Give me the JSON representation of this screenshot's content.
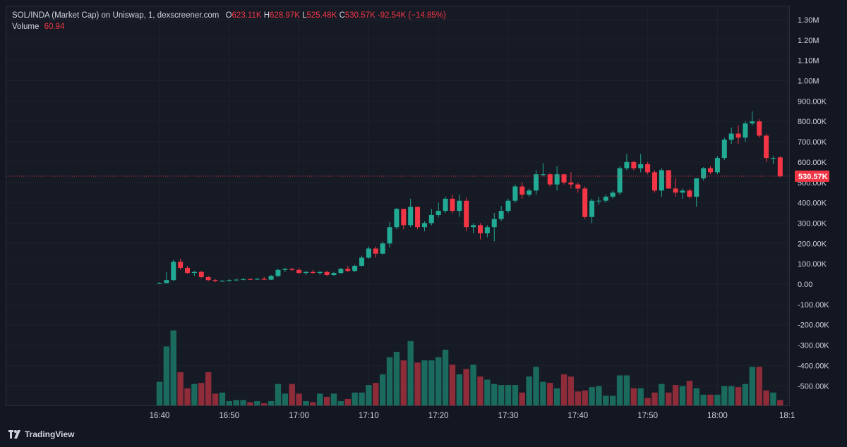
{
  "header": {
    "title": "SOL/INDA (Market Cap) on Uniswap, 1, dexscreener.com",
    "o_label": "O",
    "o_value": "623.11K",
    "h_label": "H",
    "h_value": "628.97K",
    "l_label": "L",
    "l_value": "525.48K",
    "c_label": "C",
    "c_value": "530.57K",
    "change": "-92.54K (−14.85%)",
    "volume_label": "Volume",
    "volume_value": "60.94"
  },
  "footer": {
    "brand": "TradingView",
    "logo_icon": "tradingview-logo-icon"
  },
  "colors": {
    "up": "#22ab94",
    "down": "#f23645",
    "up_vol": "#1a6b5e",
    "down_vol": "#8e2c3a"
  },
  "chart_data": {
    "type": "candlestick",
    "price_axis_ticks": [
      "1.30M",
      "1.20M",
      "1.10M",
      "1.00M",
      "900.00K",
      "800.00K",
      "700.00K",
      "600.00K",
      "500.00K",
      "400.00K",
      "300.00K",
      "200.00K",
      "100.00K",
      "0.00",
      "-100.00K",
      "-200.00K",
      "-300.00K",
      "-400.00K",
      "-500.00K"
    ],
    "price_axis_values": [
      1300000,
      1200000,
      1100000,
      1000000,
      900000,
      800000,
      700000,
      600000,
      500000,
      400000,
      300000,
      200000,
      100000,
      0,
      -100000,
      -200000,
      -300000,
      -400000,
      -500000
    ],
    "time_ticks": [
      "16:40",
      "16:50",
      "17:00",
      "17:10",
      "17:20",
      "17:30",
      "17:40",
      "17:50",
      "18:00",
      "18:1"
    ],
    "time_tick_minutes": [
      0,
      10,
      20,
      30,
      40,
      50,
      60,
      70,
      80,
      90
    ],
    "current_price_label": "530.57K",
    "current_price": 530570,
    "candles": [
      {
        "t": 0,
        "o": 3000,
        "h": 10000,
        "l": 0,
        "c": 5000
      },
      {
        "t": 1,
        "o": 5000,
        "h": 60000,
        "l": 3000,
        "c": 20000
      },
      {
        "t": 2,
        "o": 20000,
        "h": 120000,
        "l": 15000,
        "c": 110000
      },
      {
        "t": 3,
        "o": 110000,
        "h": 125000,
        "l": 70000,
        "c": 80000
      },
      {
        "t": 4,
        "o": 80000,
        "h": 90000,
        "l": 50000,
        "c": 55000
      },
      {
        "t": 5,
        "o": 55000,
        "h": 65000,
        "l": 40000,
        "c": 60000
      },
      {
        "t": 6,
        "o": 60000,
        "h": 65000,
        "l": 30000,
        "c": 35000
      },
      {
        "t": 7,
        "o": 35000,
        "h": 40000,
        "l": 15000,
        "c": 20000
      },
      {
        "t": 8,
        "o": 20000,
        "h": 25000,
        "l": 10000,
        "c": 15000
      },
      {
        "t": 9,
        "o": 15000,
        "h": 20000,
        "l": 12000,
        "c": 16000
      },
      {
        "t": 10,
        "o": 16000,
        "h": 25000,
        "l": 12000,
        "c": 20000
      },
      {
        "t": 11,
        "o": 20000,
        "h": 28000,
        "l": 15000,
        "c": 22000
      },
      {
        "t": 12,
        "o": 22000,
        "h": 30000,
        "l": 18000,
        "c": 25000
      },
      {
        "t": 13,
        "o": 25000,
        "h": 30000,
        "l": 20000,
        "c": 24000
      },
      {
        "t": 14,
        "o": 24000,
        "h": 30000,
        "l": 20000,
        "c": 26000
      },
      {
        "t": 15,
        "o": 26000,
        "h": 35000,
        "l": 20000,
        "c": 22000
      },
      {
        "t": 16,
        "o": 22000,
        "h": 45000,
        "l": 20000,
        "c": 40000
      },
      {
        "t": 17,
        "o": 40000,
        "h": 75000,
        "l": 35000,
        "c": 70000
      },
      {
        "t": 18,
        "o": 70000,
        "h": 80000,
        "l": 60000,
        "c": 75000
      },
      {
        "t": 19,
        "o": 75000,
        "h": 80000,
        "l": 65000,
        "c": 70000
      },
      {
        "t": 20,
        "o": 70000,
        "h": 80000,
        "l": 50000,
        "c": 55000
      },
      {
        "t": 21,
        "o": 55000,
        "h": 65000,
        "l": 45000,
        "c": 60000
      },
      {
        "t": 22,
        "o": 60000,
        "h": 70000,
        "l": 50000,
        "c": 55000
      },
      {
        "t": 23,
        "o": 55000,
        "h": 65000,
        "l": 45000,
        "c": 60000
      },
      {
        "t": 24,
        "o": 60000,
        "h": 65000,
        "l": 40000,
        "c": 45000
      },
      {
        "t": 25,
        "o": 45000,
        "h": 60000,
        "l": 40000,
        "c": 55000
      },
      {
        "t": 26,
        "o": 55000,
        "h": 80000,
        "l": 50000,
        "c": 75000
      },
      {
        "t": 27,
        "o": 75000,
        "h": 90000,
        "l": 60000,
        "c": 65000
      },
      {
        "t": 28,
        "o": 65000,
        "h": 95000,
        "l": 60000,
        "c": 90000
      },
      {
        "t": 29,
        "o": 90000,
        "h": 140000,
        "l": 85000,
        "c": 130000
      },
      {
        "t": 30,
        "o": 130000,
        "h": 185000,
        "l": 125000,
        "c": 175000
      },
      {
        "t": 31,
        "o": 175000,
        "h": 185000,
        "l": 130000,
        "c": 150000
      },
      {
        "t": 32,
        "o": 150000,
        "h": 210000,
        "l": 145000,
        "c": 200000
      },
      {
        "t": 33,
        "o": 200000,
        "h": 305000,
        "l": 180000,
        "c": 280000
      },
      {
        "t": 34,
        "o": 280000,
        "h": 375000,
        "l": 270000,
        "c": 370000
      },
      {
        "t": 35,
        "o": 370000,
        "h": 370000,
        "l": 270000,
        "c": 290000
      },
      {
        "t": 36,
        "o": 290000,
        "h": 420000,
        "l": 280000,
        "c": 380000
      },
      {
        "t": 37,
        "o": 380000,
        "h": 380000,
        "l": 270000,
        "c": 280000
      },
      {
        "t": 38,
        "o": 280000,
        "h": 310000,
        "l": 260000,
        "c": 300000
      },
      {
        "t": 39,
        "o": 300000,
        "h": 370000,
        "l": 290000,
        "c": 340000
      },
      {
        "t": 40,
        "o": 340000,
        "h": 400000,
        "l": 330000,
        "c": 360000
      },
      {
        "t": 41,
        "o": 360000,
        "h": 430000,
        "l": 350000,
        "c": 420000
      },
      {
        "t": 42,
        "o": 420000,
        "h": 440000,
        "l": 350000,
        "c": 360000
      },
      {
        "t": 43,
        "o": 360000,
        "h": 440000,
        "l": 330000,
        "c": 410000
      },
      {
        "t": 44,
        "o": 410000,
        "h": 425000,
        "l": 260000,
        "c": 280000
      },
      {
        "t": 45,
        "o": 280000,
        "h": 300000,
        "l": 250000,
        "c": 290000
      },
      {
        "t": 46,
        "o": 290000,
        "h": 300000,
        "l": 220000,
        "c": 250000
      },
      {
        "t": 47,
        "o": 250000,
        "h": 290000,
        "l": 230000,
        "c": 280000
      },
      {
        "t": 48,
        "o": 280000,
        "h": 350000,
        "l": 210000,
        "c": 320000
      },
      {
        "t": 49,
        "o": 320000,
        "h": 385000,
        "l": 310000,
        "c": 360000
      },
      {
        "t": 50,
        "o": 360000,
        "h": 420000,
        "l": 350000,
        "c": 410000
      },
      {
        "t": 51,
        "o": 410000,
        "h": 490000,
        "l": 400000,
        "c": 480000
      },
      {
        "t": 52,
        "o": 480000,
        "h": 500000,
        "l": 420000,
        "c": 440000
      },
      {
        "t": 53,
        "o": 440000,
        "h": 470000,
        "l": 430000,
        "c": 460000
      },
      {
        "t": 54,
        "o": 460000,
        "h": 560000,
        "l": 440000,
        "c": 540000
      },
      {
        "t": 55,
        "o": 540000,
        "h": 595000,
        "l": 530000,
        "c": 540000
      },
      {
        "t": 56,
        "o": 540000,
        "h": 545000,
        "l": 480000,
        "c": 490000
      },
      {
        "t": 57,
        "o": 490000,
        "h": 580000,
        "l": 460000,
        "c": 540000
      },
      {
        "t": 58,
        "o": 540000,
        "h": 540000,
        "l": 490000,
        "c": 500000
      },
      {
        "t": 59,
        "o": 500000,
        "h": 550000,
        "l": 470000,
        "c": 490000
      },
      {
        "t": 60,
        "o": 490000,
        "h": 500000,
        "l": 450000,
        "c": 470000
      },
      {
        "t": 61,
        "o": 470000,
        "h": 480000,
        "l": 320000,
        "c": 330000
      },
      {
        "t": 62,
        "o": 330000,
        "h": 420000,
        "l": 300000,
        "c": 410000
      },
      {
        "t": 63,
        "o": 410000,
        "h": 430000,
        "l": 390000,
        "c": 410000
      },
      {
        "t": 64,
        "o": 410000,
        "h": 440000,
        "l": 400000,
        "c": 430000
      },
      {
        "t": 65,
        "o": 430000,
        "h": 460000,
        "l": 420000,
        "c": 450000
      },
      {
        "t": 66,
        "o": 450000,
        "h": 580000,
        "l": 440000,
        "c": 570000
      },
      {
        "t": 67,
        "o": 570000,
        "h": 640000,
        "l": 560000,
        "c": 600000
      },
      {
        "t": 68,
        "o": 600000,
        "h": 605000,
        "l": 560000,
        "c": 570000
      },
      {
        "t": 69,
        "o": 570000,
        "h": 640000,
        "l": 550000,
        "c": 590000
      },
      {
        "t": 70,
        "o": 590000,
        "h": 600000,
        "l": 540000,
        "c": 550000
      },
      {
        "t": 71,
        "o": 550000,
        "h": 560000,
        "l": 450000,
        "c": 460000
      },
      {
        "t": 72,
        "o": 460000,
        "h": 570000,
        "l": 430000,
        "c": 560000
      },
      {
        "t": 73,
        "o": 560000,
        "h": 560000,
        "l": 470000,
        "c": 470000
      },
      {
        "t": 74,
        "o": 470000,
        "h": 520000,
        "l": 430000,
        "c": 450000
      },
      {
        "t": 75,
        "o": 450000,
        "h": 470000,
        "l": 420000,
        "c": 460000
      },
      {
        "t": 76,
        "o": 460000,
        "h": 470000,
        "l": 420000,
        "c": 430000
      },
      {
        "t": 77,
        "o": 430000,
        "h": 520000,
        "l": 380000,
        "c": 520000
      },
      {
        "t": 78,
        "o": 520000,
        "h": 575000,
        "l": 510000,
        "c": 570000
      },
      {
        "t": 79,
        "o": 570000,
        "h": 580000,
        "l": 540000,
        "c": 550000
      },
      {
        "t": 80,
        "o": 550000,
        "h": 630000,
        "l": 540000,
        "c": 620000
      },
      {
        "t": 81,
        "o": 620000,
        "h": 720000,
        "l": 610000,
        "c": 710000
      },
      {
        "t": 82,
        "o": 710000,
        "h": 770000,
        "l": 690000,
        "c": 740000
      },
      {
        "t": 83,
        "o": 740000,
        "h": 780000,
        "l": 690000,
        "c": 720000
      },
      {
        "t": 84,
        "o": 720000,
        "h": 800000,
        "l": 700000,
        "c": 790000
      },
      {
        "t": 85,
        "o": 790000,
        "h": 850000,
        "l": 780000,
        "c": 800000
      },
      {
        "t": 86,
        "o": 800000,
        "h": 810000,
        "l": 720000,
        "c": 730000
      },
      {
        "t": 87,
        "o": 730000,
        "h": 740000,
        "l": 600000,
        "c": 620000
      },
      {
        "t": 88,
        "o": 620000,
        "h": 630000,
        "l": 590000,
        "c": 620000
      },
      {
        "t": 89,
        "o": 623110,
        "h": 628970,
        "l": 525480,
        "c": 530570
      }
    ],
    "volume_relative": [
      0.22,
      0.55,
      0.7,
      0.31,
      0.16,
      0.2,
      0.21,
      0.31,
      0.11,
      0.12,
      0.04,
      0.05,
      0.05,
      0.03,
      0.04,
      0.02,
      0.04,
      0.2,
      0.11,
      0.2,
      0.11,
      0.04,
      0.03,
      0.11,
      0.08,
      0.11,
      0.04,
      0.06,
      0.12,
      0.12,
      0.19,
      0.21,
      0.29,
      0.45,
      0.5,
      0.42,
      0.6,
      0.4,
      0.42,
      0.42,
      0.45,
      0.52,
      0.38,
      0.29,
      0.34,
      0.38,
      0.27,
      0.24,
      0.2,
      0.19,
      0.19,
      0.19,
      0.12,
      0.27,
      0.36,
      0.22,
      0.21,
      0.16,
      0.29,
      0.27,
      0.13,
      0.14,
      0.17,
      0.18,
      0.09,
      0.09,
      0.28,
      0.28,
      0.16,
      0.16,
      0.07,
      0.12,
      0.2,
      0.12,
      0.19,
      0.18,
      0.23,
      0.16,
      0.1,
      0.1,
      0.1,
      0.18,
      0.18,
      0.17,
      0.2,
      0.36,
      0.36,
      0.14,
      0.12,
      0.05
    ]
  }
}
